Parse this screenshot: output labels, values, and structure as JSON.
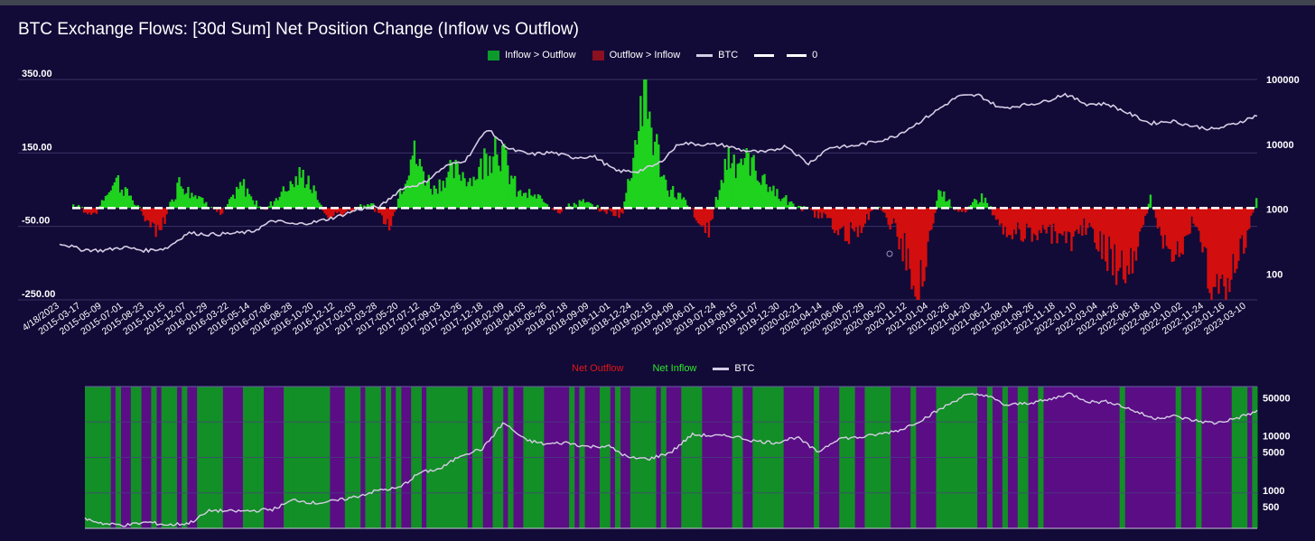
{
  "chart_data": [
    {
      "type": "bar",
      "title": "BTC Exchange Flows: [30d Sum] Net Position Change (Inflow vs Outflow)",
      "legend": {
        "inflow_label": "Inflow > Outflow",
        "outflow_label": "Outflow > Inflow",
        "btc_label": "BTC",
        "zero_label": "0",
        "position": "top-center"
      },
      "colors": {
        "inflow": "#1ed21e",
        "outflow": "#d30e0e",
        "inflow_legend": "#0d9a2c",
        "outflow_legend": "#8b1020",
        "btc": "#d5cde4",
        "zero": "#ffffff",
        "background": "#120a37"
      },
      "left_axis": {
        "range": [
          -250,
          350
        ],
        "ticks": [
          "350.00",
          "150.00",
          "-50.00",
          "-250.00"
        ],
        "tick_values": [
          350,
          150,
          -50,
          -250
        ]
      },
      "right_axis": {
        "scale": "log",
        "range": [
          40,
          100000
        ],
        "ticks": [
          "100000",
          "10000",
          "1000",
          "100"
        ],
        "tick_values": [
          100000,
          10000,
          1000,
          100
        ]
      },
      "x_tick_labels": [
        "4/18/2023",
        "2015-03-17",
        "2015-05-09",
        "2015-07-01",
        "2015-08-23",
        "2015-10-15",
        "2015-12-07",
        "2016-01-29",
        "2016-03-22",
        "2016-05-14",
        "2016-07-06",
        "2016-08-28",
        "2016-10-20",
        "2016-12-12",
        "2017-02-03",
        "2017-03-28",
        "2017-05-20",
        "2017-07-12",
        "2017-09-03",
        "2017-10-26",
        "2017-12-18",
        "2018-02-09",
        "2018-04-03",
        "2018-05-26",
        "2018-07-18",
        "2018-09-09",
        "2018-11-01",
        "2018-12-24",
        "2019-02-15",
        "2019-04-09",
        "2019-06-01",
        "2019-07-24",
        "2019-09-15",
        "2019-11-07",
        "2019-12-30",
        "2020-02-21",
        "2020-04-14",
        "2020-06-06",
        "2020-07-29",
        "2020-09-20",
        "2020-11-12",
        "2021-01-04",
        "2021-02-26",
        "2021-04-20",
        "2021-06-12",
        "2021-08-04",
        "2021-09-26",
        "2021-11-18",
        "2022-01-10",
        "2022-03-04",
        "2022-04-26",
        "2022-06-18",
        "2022-08-10",
        "2022-10-02",
        "2022-11-24",
        "2023-01-16",
        "2023-03-10"
      ],
      "btc_price_by_tick": [
        300,
        240,
        230,
        260,
        230,
        250,
        430,
        410,
        420,
        450,
        670,
        580,
        640,
        770,
        1000,
        1100,
        2100,
        2500,
        4500,
        5800,
        17500,
        8500,
        7000,
        7500,
        6300,
        6500,
        3900,
        3800,
        5000,
        10500,
        10000,
        9800,
        8000,
        7500,
        9500,
        5000,
        9000,
        9300,
        10800,
        13000,
        20000,
        33000,
        55000,
        57000,
        36000,
        40000,
        45000,
        60000,
        42000,
        42000,
        30000,
        21000,
        23000,
        19000,
        17000,
        21000,
        28000
      ],
      "net_flow_by_tick": [
        10,
        -20,
        90,
        10,
        -90,
        80,
        30,
        -20,
        70,
        -10,
        60,
        100,
        -30,
        -10,
        20,
        -60,
        170,
        60,
        110,
        90,
        210,
        50,
        30,
        -10,
        20,
        -5,
        -20,
        350,
        70,
        20,
        -80,
        160,
        140,
        60,
        10,
        -10,
        -50,
        -90,
        10,
        -70,
        -250,
        60,
        -20,
        40,
        -60,
        -80,
        -70,
        -110,
        -50,
        -150,
        -200,
        30,
        -180,
        -40,
        -250,
        -190,
        30
      ]
    },
    {
      "type": "area",
      "legend": {
        "outflow_label": "Net Outflow",
        "inflow_label": "Net Inflow",
        "btc_label": "BTC",
        "position": "top-center"
      },
      "colors": {
        "inflow": "#128f26",
        "outflow": "#5a0d84",
        "outflow_legend": "#e01717",
        "inflow_legend": "#2ee82e",
        "btc": "#d5cde4"
      },
      "right_axis": {
        "scale": "log",
        "range": [
          200,
          80000
        ],
        "ticks": [
          "50000",
          "10000",
          "5000",
          "1000",
          "500"
        ],
        "tick_values": [
          50000,
          10000,
          5000,
          1000,
          500
        ]
      },
      "regime_by_tick": [
        "in",
        "in",
        "in",
        "out",
        "in",
        "out",
        "in",
        "out",
        "in",
        "out",
        "in",
        "in",
        "out",
        "in",
        "in",
        "out",
        "in",
        "in",
        "in",
        "in",
        "in",
        "in",
        "out",
        "out",
        "out",
        "in",
        "out",
        "in",
        "in",
        "in",
        "out",
        "in",
        "in",
        "in",
        "out",
        "out",
        "out",
        "out",
        "in",
        "out",
        "out",
        "in",
        "in",
        "in",
        "out",
        "out",
        "out",
        "out",
        "out",
        "out",
        "out",
        "out",
        "out",
        "out",
        "out",
        "in",
        "in"
      ]
    }
  ]
}
